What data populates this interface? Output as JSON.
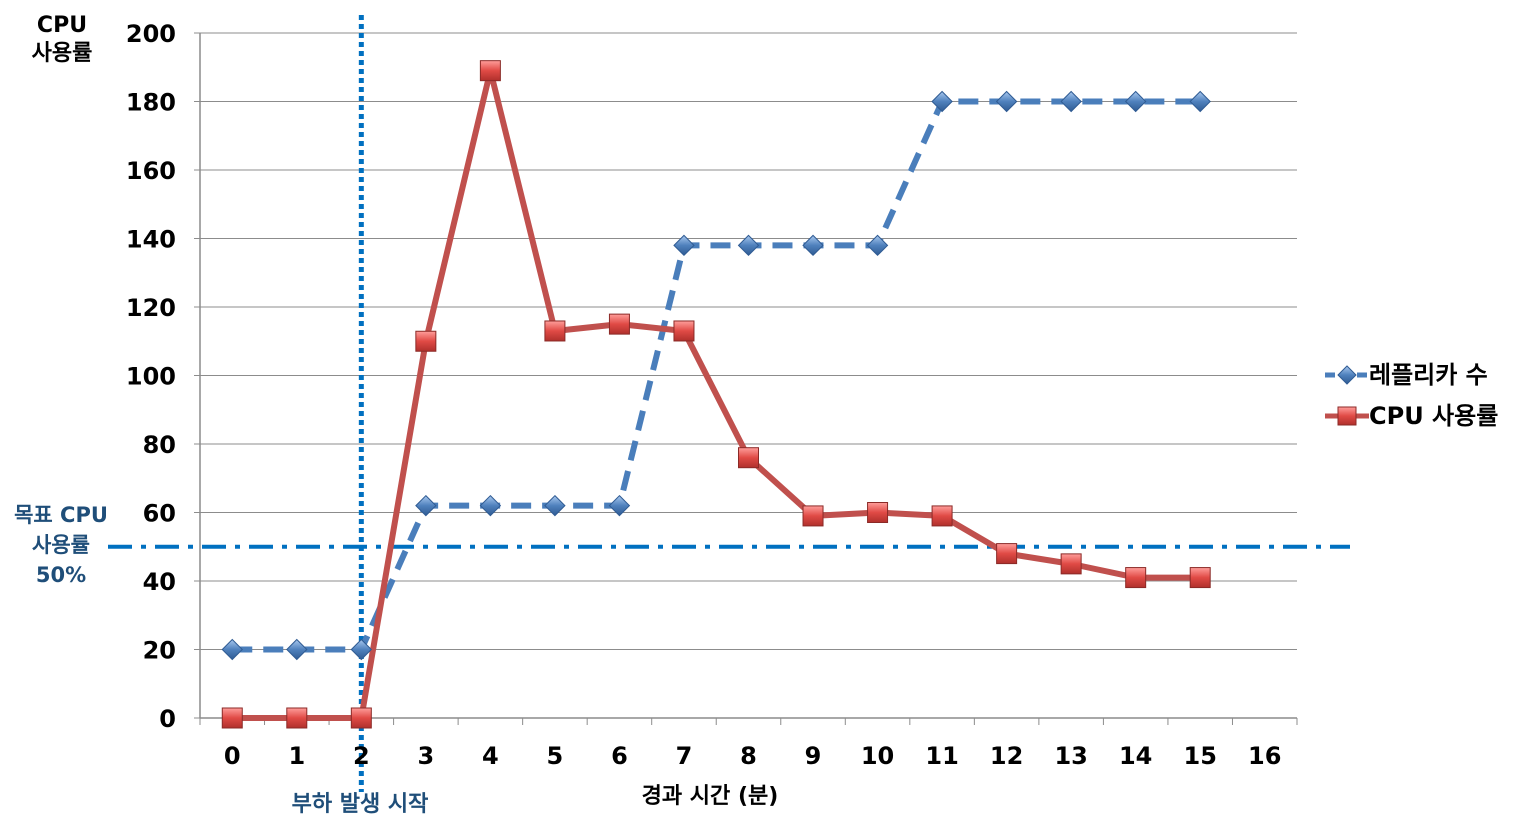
{
  "chart_data": {
    "type": "line",
    "title": "",
    "ylabel": "CPU\n사용률",
    "xlabel": "경과 시간 (분)",
    "ylim": [
      0,
      200
    ],
    "yticks": [
      0,
      20,
      40,
      60,
      80,
      100,
      120,
      140,
      160,
      180,
      200
    ],
    "xlim": [
      0,
      16
    ],
    "xticks": [
      0,
      1,
      2,
      3,
      4,
      5,
      6,
      7,
      8,
      9,
      10,
      11,
      12,
      13,
      14,
      15,
      16
    ],
    "grid": "horizontal",
    "legend_position": "right",
    "series": [
      {
        "name": "레플리카 수",
        "style": "dashed",
        "marker": "diamond",
        "color": "#4a7ebb",
        "x": [
          0,
          1,
          2,
          3,
          4,
          5,
          6,
          7,
          8,
          9,
          10,
          11,
          12,
          13,
          14,
          15
        ],
        "values": [
          20,
          20,
          20,
          62,
          62,
          62,
          62,
          138,
          138,
          138,
          138,
          180,
          180,
          180,
          180,
          180
        ]
      },
      {
        "name": "CPU 사용률",
        "style": "solid",
        "marker": "square",
        "color": "#c0504d",
        "x": [
          0,
          1,
          2,
          3,
          4,
          5,
          6,
          7,
          8,
          9,
          10,
          11,
          12,
          13,
          14,
          15
        ],
        "values": [
          0,
          0,
          0,
          110,
          189,
          113,
          115,
          113,
          76,
          59,
          60,
          59,
          48,
          45,
          41,
          41
        ]
      }
    ],
    "annotations": {
      "target_line": {
        "value": 50,
        "label": "목표 CPU\n사용률\n50%",
        "color": "#0070c0",
        "style": "dash-dot"
      },
      "event_line": {
        "x": 2,
        "label": "부하 발생 시작",
        "color": "#0070c0",
        "style": "dotted"
      }
    }
  }
}
